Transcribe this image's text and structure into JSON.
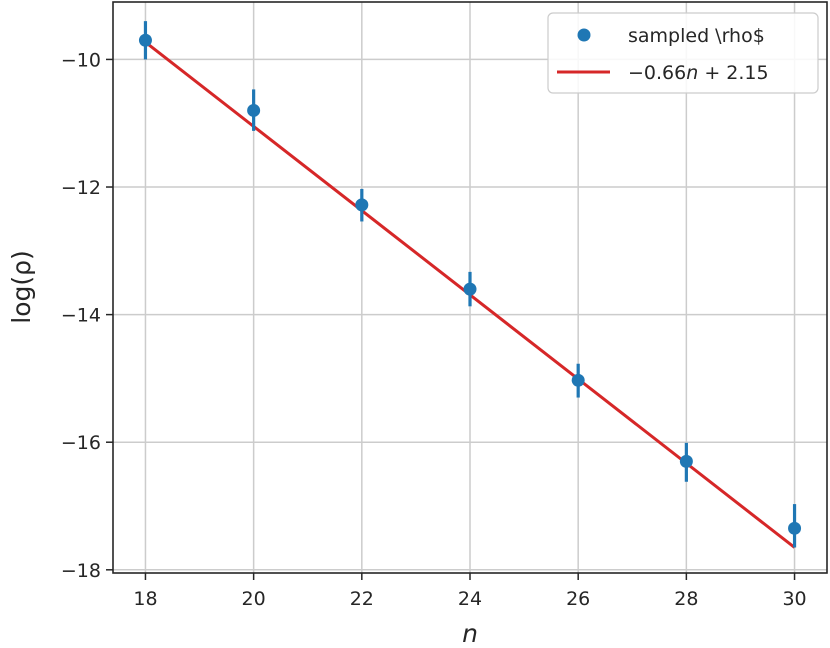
{
  "chart_data": {
    "type": "scatter",
    "xlabel": "n",
    "ylabel": "log(ρ)",
    "xlim": [
      17.4,
      30.6
    ],
    "ylim": [
      -18.05,
      -9.1
    ],
    "x_ticks": [
      18,
      20,
      22,
      24,
      26,
      28,
      30
    ],
    "y_ticks": [
      -10,
      -12,
      -14,
      -16,
      -18
    ],
    "x_tick_labels": [
      "18",
      "20",
      "22",
      "24",
      "26",
      "28",
      "30"
    ],
    "y_tick_labels": [
      "−10",
      "−12",
      "−14",
      "−16",
      "−18"
    ],
    "grid": true,
    "legend_position": "top-right",
    "series": [
      {
        "name": "sampled \\rho$",
        "kind": "errorbar-scatter",
        "color": "#1f77b4",
        "x": [
          18,
          20,
          22,
          24,
          26,
          28,
          30
        ],
        "y": [
          -9.7,
          -10.8,
          -12.28,
          -13.6,
          -15.03,
          -16.3,
          -17.35
        ],
        "yerr_low": [
          0.3,
          0.32,
          0.26,
          0.27,
          0.27,
          0.32,
          0.3
        ],
        "yerr_high": [
          0.3,
          0.33,
          0.25,
          0.27,
          0.26,
          0.29,
          0.38
        ]
      },
      {
        "name_prefix": "−0.66",
        "name_var": "n",
        "name_suffix": " + 2.15",
        "kind": "line",
        "color": "#d62728",
        "slope": -0.66,
        "intercept": 2.15,
        "x_range": [
          18,
          30
        ]
      }
    ]
  }
}
